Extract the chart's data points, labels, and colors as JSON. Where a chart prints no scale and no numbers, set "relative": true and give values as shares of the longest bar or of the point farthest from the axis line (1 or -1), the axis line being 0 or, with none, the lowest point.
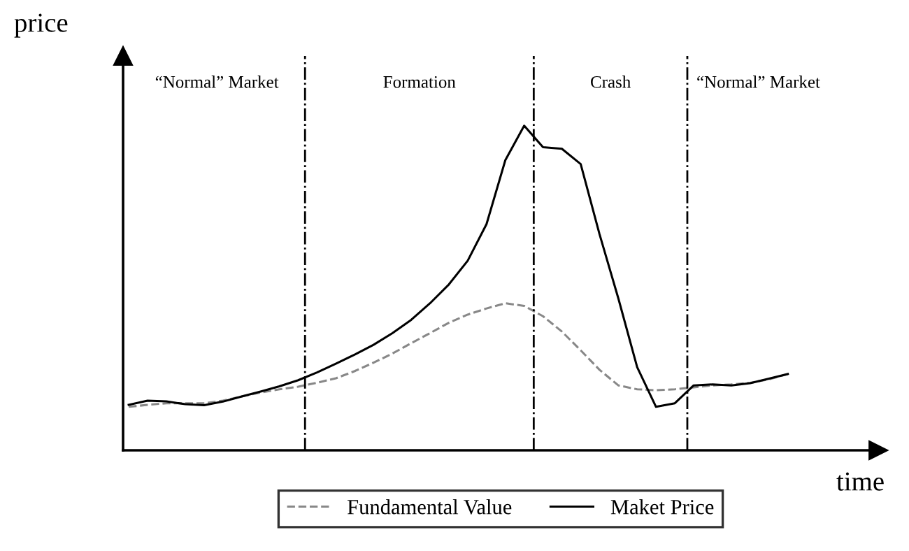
{
  "chart_data": {
    "type": "line",
    "relative": true,
    "xlabel": "time",
    "ylabel": "price",
    "categories": [
      null,
      null,
      null,
      null,
      null,
      null,
      null,
      null,
      null,
      null,
      null,
      null,
      null,
      null,
      null,
      null,
      null,
      null,
      null,
      null,
      null,
      null,
      null,
      null,
      null,
      null,
      null,
      null,
      null,
      null,
      null,
      null,
      null,
      null,
      null,
      null
    ],
    "series": [
      {
        "name": "Fundamental Value",
        "color": "#888888",
        "line_style": "dashed",
        "values": [
          0.134,
          0.14,
          0.145,
          0.145,
          0.145,
          0.153,
          0.166,
          0.178,
          0.188,
          0.196,
          0.208,
          0.222,
          0.244,
          0.27,
          0.298,
          0.33,
          0.361,
          0.393,
          0.418,
          0.437,
          0.453,
          0.445,
          0.413,
          0.366,
          0.308,
          0.248,
          0.2,
          0.188,
          0.185,
          0.188,
          0.194,
          0.2,
          0.203,
          0.208,
          0.219,
          0.235
        ]
      },
      {
        "name": "Maket Price",
        "color": "#000000",
        "line_style": "solid",
        "values": [
          0.14,
          0.153,
          0.151,
          0.142,
          0.139,
          0.15,
          0.166,
          0.181,
          0.197,
          0.216,
          0.24,
          0.267,
          0.295,
          0.325,
          0.361,
          0.402,
          0.453,
          0.511,
          0.584,
          0.697,
          0.894,
          1.0,
          0.934,
          0.929,
          0.882,
          0.666,
          0.468,
          0.256,
          0.134,
          0.145,
          0.2,
          0.203,
          0.2,
          0.207,
          0.221,
          0.235
        ]
      }
    ],
    "annotations": [
      "“Normal” Market",
      "Formation",
      "Crash",
      "“Normal” Market"
    ],
    "legend": "bottom",
    "marker": "none"
  }
}
